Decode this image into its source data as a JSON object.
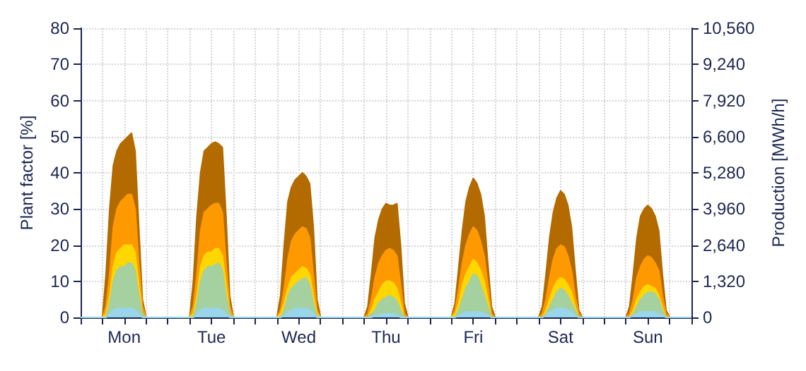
{
  "chart_data": {
    "type": "area",
    "ylabel": "Plant factor [%]",
    "y2label": "Production [MWh/h]",
    "categories": [
      null,
      null,
      null,
      null,
      null,
      null,
      null,
      null,
      null,
      null,
      null,
      null,
      "Mon",
      null,
      null,
      null,
      null,
      null,
      null,
      null,
      null,
      null,
      null,
      null,
      null,
      null,
      null,
      null,
      null,
      null,
      null,
      null,
      null,
      null,
      null,
      null,
      "Tue",
      null,
      null,
      null,
      null,
      null,
      null,
      null,
      null,
      null,
      null,
      null,
      null,
      null,
      null,
      null,
      null,
      null,
      null,
      null,
      null,
      null,
      null,
      null,
      "Wed",
      null,
      null,
      null,
      null,
      null,
      null,
      null,
      null,
      null,
      null,
      null,
      null,
      null,
      null,
      null,
      null,
      null,
      null,
      null,
      null,
      null,
      null,
      null,
      "Thu",
      null,
      null,
      null,
      null,
      null,
      null,
      null,
      null,
      null,
      null,
      null,
      null,
      null,
      null,
      null,
      null,
      null,
      null,
      null,
      null,
      null,
      null,
      null,
      "Fri",
      null,
      null,
      null,
      null,
      null,
      null,
      null,
      null,
      null,
      null,
      null,
      null,
      null,
      null,
      null,
      null,
      null,
      null,
      null,
      null,
      null,
      null,
      null,
      "Sat",
      null,
      null,
      null,
      null,
      null,
      null,
      null,
      null,
      null,
      null,
      null,
      null,
      null,
      null,
      null,
      null,
      null,
      null,
      null,
      null,
      null,
      null,
      null,
      "Sun",
      null,
      null,
      null,
      null,
      null,
      null,
      null,
      null,
      null,
      null,
      null,
      null
    ],
    "series": [
      {
        "color": "#b36b00",
        "values": [
          0,
          0,
          0,
          0,
          0,
          0,
          0,
          12,
          30,
          42,
          46,
          48,
          49,
          50,
          51,
          46,
          25,
          5,
          0,
          0,
          0,
          0,
          0,
          0,
          0,
          0,
          0,
          0,
          0,
          0,
          0,
          10,
          28,
          40,
          46,
          47,
          48,
          48.5,
          48,
          47,
          28,
          6,
          0,
          0,
          0,
          0,
          0,
          0,
          0,
          0,
          0,
          0,
          0,
          0,
          0,
          6,
          20,
          32,
          36,
          38,
          39,
          40,
          39,
          37,
          25,
          5,
          0,
          0,
          0,
          0,
          0,
          0,
          0,
          0,
          0,
          0,
          0,
          0,
          0,
          3,
          12,
          22,
          27,
          30,
          31.5,
          31,
          31,
          31.5,
          20,
          4,
          0,
          0,
          0,
          0,
          0,
          0,
          0,
          0,
          0,
          0,
          0,
          0,
          0,
          4,
          14,
          24,
          32,
          36,
          38.5,
          37,
          34,
          28,
          15,
          3,
          0,
          0,
          0,
          0,
          0,
          0,
          0,
          0,
          0,
          0,
          0,
          0,
          0,
          3,
          12,
          22,
          29,
          33,
          35,
          34,
          31,
          25,
          13,
          2,
          0,
          0,
          0,
          0,
          0,
          0,
          0,
          0,
          0,
          0,
          0,
          0,
          0,
          3,
          12,
          22,
          28,
          30,
          31,
          30,
          28,
          24,
          12,
          2,
          0,
          0,
          0,
          0,
          0,
          0,
          0
        ]
      },
      {
        "color": "#ff9900",
        "values": [
          0,
          0,
          0,
          0,
          0,
          0,
          0,
          3,
          12,
          25,
          30,
          32,
          33,
          34,
          34,
          30,
          15,
          3,
          0,
          0,
          0,
          0,
          0,
          0,
          0,
          0,
          0,
          0,
          0,
          0,
          0,
          3,
          12,
          24,
          29,
          30,
          31,
          31.5,
          31.5,
          29,
          15,
          3,
          0,
          0,
          0,
          0,
          0,
          0,
          0,
          0,
          0,
          0,
          0,
          0,
          0,
          2,
          8,
          16,
          21,
          23,
          24,
          25,
          24.5,
          22,
          12,
          2,
          0,
          0,
          0,
          0,
          0,
          0,
          0,
          0,
          0,
          0,
          0,
          0,
          0,
          1,
          5,
          11,
          15,
          17,
          18.5,
          19,
          18.5,
          17,
          9,
          1,
          0,
          0,
          0,
          0,
          0,
          0,
          0,
          0,
          0,
          0,
          0,
          0,
          0,
          2,
          8,
          15,
          20,
          23,
          25,
          24,
          21,
          17,
          9,
          1,
          0,
          0,
          0,
          0,
          0,
          0,
          0,
          0,
          0,
          0,
          0,
          0,
          0,
          1,
          5,
          11,
          16,
          19,
          20,
          19.5,
          17,
          13,
          6,
          1,
          0,
          0,
          0,
          0,
          0,
          0,
          0,
          0,
          0,
          0,
          0,
          0,
          0,
          1,
          5,
          11,
          14,
          16,
          17,
          16.5,
          15,
          13,
          6,
          1,
          0,
          0,
          0,
          0,
          0,
          0,
          0
        ]
      },
      {
        "color": "#ffd700",
        "values": [
          0,
          0,
          0,
          0,
          0,
          0,
          0,
          1,
          6,
          14,
          18,
          19,
          20,
          20,
          20,
          18,
          9,
          1,
          0,
          0,
          0,
          0,
          0,
          0,
          0,
          0,
          0,
          0,
          0,
          0,
          0,
          1,
          6,
          14,
          17,
          18,
          18,
          19,
          19,
          17,
          9,
          1,
          0,
          0,
          0,
          0,
          0,
          0,
          0,
          0,
          0,
          0,
          0,
          0,
          0,
          1,
          4,
          8,
          11,
          12,
          13,
          14,
          13.5,
          12,
          6,
          1,
          0,
          0,
          0,
          0,
          0,
          0,
          0,
          0,
          0,
          0,
          0,
          0,
          0,
          0,
          2,
          5,
          7,
          9,
          10,
          10,
          9.5,
          8,
          4,
          0,
          0,
          0,
          0,
          0,
          0,
          0,
          0,
          0,
          0,
          0,
          0,
          0,
          0,
          1,
          4,
          9,
          12,
          14,
          16,
          15,
          13,
          10,
          5,
          0,
          0,
          0,
          0,
          0,
          0,
          0,
          0,
          0,
          0,
          0,
          0,
          0,
          0,
          0,
          2,
          5,
          8,
          10,
          11,
          10.5,
          9,
          7,
          3,
          0,
          0,
          0,
          0,
          0,
          0,
          0,
          0,
          0,
          0,
          0,
          0,
          0,
          0,
          0,
          2,
          5,
          7,
          8.5,
          9,
          8.5,
          8,
          6,
          3,
          0,
          0,
          0,
          0,
          0,
          0,
          0,
          0
        ]
      },
      {
        "color": "#a5d0a0",
        "values": [
          0,
          0,
          0,
          0,
          0,
          0,
          0,
          0,
          4,
          10,
          13,
          14,
          14,
          15,
          15,
          13,
          6,
          1,
          0,
          0,
          0,
          0,
          0,
          0,
          0,
          0,
          0,
          0,
          0,
          0,
          0,
          0,
          4,
          10,
          13,
          14,
          14,
          14.5,
          15,
          13,
          6,
          1,
          0,
          0,
          0,
          0,
          0,
          0,
          0,
          0,
          0,
          0,
          0,
          0,
          0,
          0,
          2,
          6,
          8,
          9,
          10,
          10.5,
          11,
          9,
          4,
          0.5,
          0,
          0,
          0,
          0,
          0,
          0,
          0,
          0,
          0,
          0,
          0,
          0,
          0,
          0,
          1,
          2,
          4,
          5,
          5.5,
          6,
          5.5,
          4.5,
          2,
          0,
          0,
          0,
          0,
          0,
          0,
          0,
          0,
          0,
          0,
          0,
          0,
          0,
          0,
          0,
          2,
          5,
          8,
          10,
          12,
          11.5,
          9,
          6,
          3,
          0,
          0,
          0,
          0,
          0,
          0,
          0,
          0,
          0,
          0,
          0,
          0,
          0,
          0,
          0,
          1,
          3,
          5,
          7,
          8,
          7.5,
          6,
          4,
          2,
          0,
          0,
          0,
          0,
          0,
          0,
          0,
          0,
          0,
          0,
          0,
          0,
          0,
          0,
          0,
          1,
          3,
          5,
          6,
          7,
          7,
          6.5,
          5,
          2,
          0,
          0,
          0,
          0,
          0,
          0,
          0,
          0
        ]
      },
      {
        "color": "#99d5eb",
        "values": [
          0,
          0,
          0,
          0,
          0,
          0,
          0,
          0,
          1,
          2,
          2.5,
          2.5,
          2.5,
          2.5,
          2.5,
          2,
          1,
          0,
          0,
          0,
          0,
          0,
          0,
          0,
          0,
          0,
          0,
          0,
          0,
          0,
          0,
          0,
          1,
          2,
          2.5,
          2.5,
          2.5,
          2.5,
          2.5,
          2,
          1,
          0,
          0,
          0,
          0,
          0,
          0,
          0,
          0,
          0,
          0,
          0,
          0,
          0,
          0,
          0,
          0.5,
          1.5,
          2,
          2.5,
          2.5,
          2.5,
          2.5,
          2,
          1,
          0,
          0,
          0,
          0,
          0,
          0,
          0,
          0,
          0,
          0,
          0,
          0,
          0,
          0,
          0,
          0,
          0.5,
          0.5,
          1,
          1,
          1,
          1,
          0.5,
          0,
          0,
          0,
          0,
          0,
          0,
          0,
          0,
          0,
          0,
          0,
          0,
          0,
          0,
          0,
          0,
          0.5,
          1,
          1.5,
          1.5,
          1.5,
          1.5,
          1.5,
          1,
          0.5,
          0,
          0,
          0,
          0,
          0,
          0,
          0,
          0,
          0,
          0,
          0,
          0,
          0,
          0,
          0,
          0.5,
          1.5,
          2,
          2.5,
          2.5,
          2.5,
          2,
          1.5,
          0.5,
          0,
          0,
          0,
          0,
          0,
          0,
          0,
          0,
          0,
          0,
          0,
          0,
          0,
          0,
          0,
          0.5,
          1,
          1.5,
          1.5,
          1.5,
          1.5,
          1.5,
          1,
          0.5,
          0,
          0,
          0,
          0,
          0,
          0,
          0,
          0
        ]
      }
    ],
    "ylim": [
      0,
      80
    ],
    "yticks": [
      0,
      10,
      20,
      30,
      40,
      50,
      60,
      70,
      80
    ],
    "y2lim": [
      0,
      10560
    ],
    "y2ticks": [
      0,
      {
        "value": 1320,
        "label": "1,320"
      },
      {
        "value": 2640,
        "label": "2,640"
      },
      {
        "value": 3960,
        "label": "3,960"
      },
      {
        "value": 5280,
        "label": "5,280"
      },
      {
        "value": 6600,
        "label": "6,600"
      },
      {
        "value": 7920,
        "label": "7,920"
      },
      {
        "value": 9240,
        "label": "9,240"
      },
      {
        "value": 10560,
        "label": "10,560"
      }
    ],
    "grid": true
  }
}
